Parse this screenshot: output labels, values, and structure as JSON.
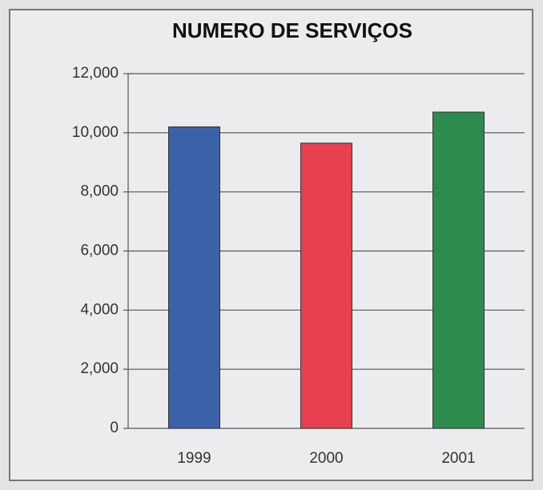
{
  "chart_data": {
    "type": "bar",
    "title": "NUMERO DE SERVIÇOS",
    "categories": [
      "1999",
      "2000",
      "2001"
    ],
    "values": [
      10200,
      9650,
      10700
    ],
    "colors": [
      "#3b62a8",
      "#e8404f",
      "#2e8b4e"
    ],
    "ylim": [
      0,
      12000
    ],
    "yticks": [
      0,
      {
        "value": 2000,
        "label": "2,000"
      },
      {
        "value": 4000,
        "label": "4,000"
      },
      {
        "value": 6000,
        "label": "6,000"
      },
      {
        "value": 8000,
        "label": "8,000"
      },
      {
        "value": 10000,
        "label": "10,000"
      },
      {
        "value": 12000,
        "label": "12,000"
      }
    ],
    "grid": true
  }
}
